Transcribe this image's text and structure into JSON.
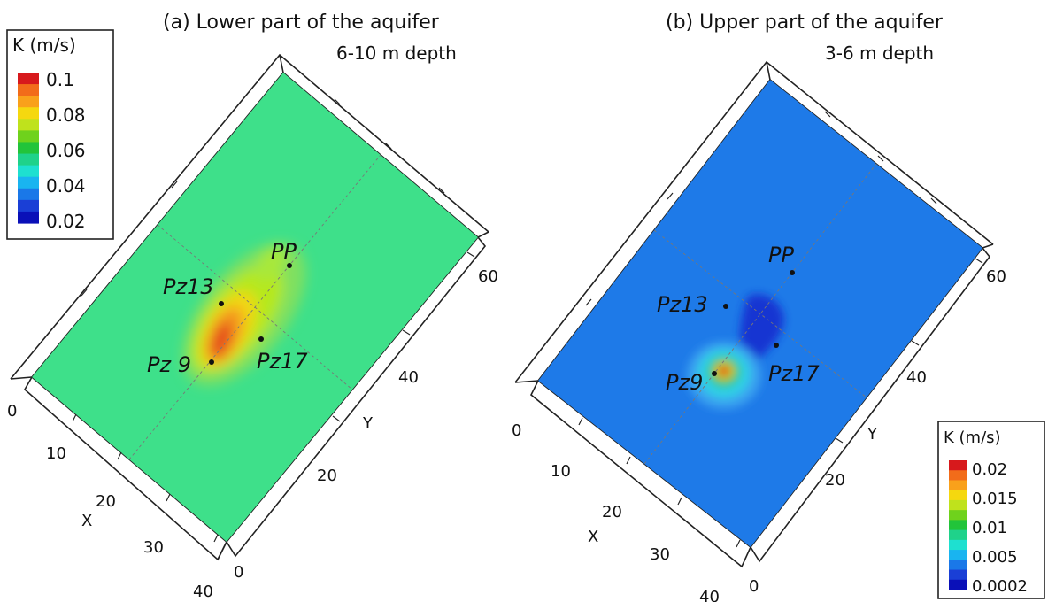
{
  "chart_data": [
    {
      "type": "heatmap",
      "title": "(a) Lower part of the aquifer",
      "subtitle": "6-10 m depth",
      "xlabel": "X",
      "ylabel": "Y",
      "x_ticks": [
        "0",
        "10",
        "20",
        "30",
        "40"
      ],
      "y_ticks": [
        "0",
        "20",
        "40",
        "60"
      ],
      "colorbar": {
        "title": "K (m/s)",
        "tick_labels": [
          "0.1",
          "0.08",
          "0.06",
          "0.04",
          "0.02"
        ],
        "colors": [
          "#d7191c",
          "#f26c1a",
          "#f9a11b",
          "#f5d80f",
          "#bfe21c",
          "#6fd21c",
          "#22c43a",
          "#1fd28a",
          "#1ee0d0",
          "#19b4f0",
          "#1a78e8",
          "#1a3fd6",
          "#0a10b8"
        ]
      },
      "background_value": 0.055,
      "background_color": "#3ee08a",
      "wells": [
        {
          "label": "PP",
          "x": 12.5,
          "y": 31
        },
        {
          "label": "Pz13",
          "x": 22,
          "y": 26
        },
        {
          "label": "Pz17",
          "x": 17,
          "y": 19
        },
        {
          "label": "Pz 9",
          "x": 24,
          "y": 20
        }
      ]
    },
    {
      "type": "heatmap",
      "title": "(b) Upper part of the aquifer",
      "subtitle": "3-6 m depth",
      "xlabel": "X",
      "ylabel": "Y",
      "x_ticks": [
        "0",
        "10",
        "20",
        "30",
        "40"
      ],
      "y_ticks": [
        "0",
        "20",
        "40",
        "60"
      ],
      "colorbar": {
        "title": "K (m/s)",
        "tick_labels": [
          "0.02",
          "0.015",
          "0.01",
          "0.005",
          "0.0002"
        ],
        "colors": [
          "#d7191c",
          "#f26c1a",
          "#f9a11b",
          "#f5d80f",
          "#bfe21c",
          "#6fd21c",
          "#22c43a",
          "#1fd28a",
          "#1ee0d0",
          "#19b4f0",
          "#1a78e8",
          "#1a3fd6",
          "#0a10b8"
        ]
      },
      "background_value": 0.003,
      "background_color": "#1e7ae8",
      "wells": [
        {
          "label": "PP",
          "x": 12.5,
          "y": 31
        },
        {
          "label": "Pz13",
          "x": 22,
          "y": 26
        },
        {
          "label": "Pz17",
          "x": 17,
          "y": 19
        },
        {
          "label": "Pz9",
          "x": 24,
          "y": 20
        }
      ]
    }
  ]
}
